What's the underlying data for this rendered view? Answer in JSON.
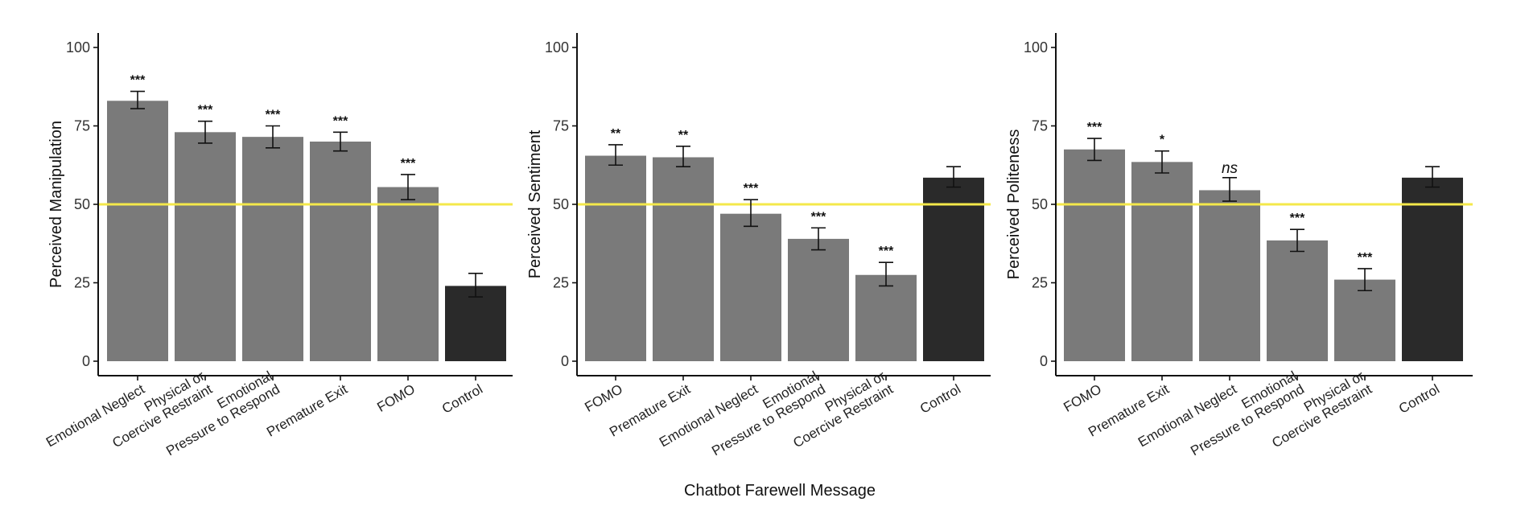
{
  "colors": {
    "bar": "#7a7a7a",
    "control_bar": "#2a2a2a",
    "reference_line": "#f4e84a",
    "axis": "#111111",
    "error_bar": "#111111"
  },
  "x_axis_title": "Chatbot Farewell Message",
  "chart_data": [
    {
      "type": "bar",
      "ylabel": "Perceived Manipulation",
      "ylim": [
        0,
        100
      ],
      "yticks": [
        "0",
        "25",
        "50",
        "75",
        "100"
      ],
      "reference_line": 50,
      "grid": false,
      "categories": [
        [
          "Emotional Neglect"
        ],
        [
          "Physical or",
          "Coercive Restraint"
        ],
        [
          "Emotional",
          "Pressure to Respond"
        ],
        [
          "Premature Exit"
        ],
        [
          "FOMO"
        ],
        [
          "Control"
        ]
      ],
      "values": [
        83,
        73,
        71.5,
        70,
        55.5,
        24
      ],
      "error_low": [
        80.5,
        69.5,
        68,
        67,
        51.5,
        20.5
      ],
      "error_high": [
        86,
        76.5,
        75,
        73,
        59.5,
        28
      ],
      "significance": [
        "***",
        "***",
        "***",
        "***",
        "***",
        ""
      ]
    },
    {
      "type": "bar",
      "ylabel": "Perceived Sentiment",
      "ylim": [
        0,
        100
      ],
      "yticks": [
        "0",
        "25",
        "50",
        "75",
        "100"
      ],
      "reference_line": 50,
      "grid": false,
      "categories": [
        [
          "FOMO"
        ],
        [
          "Premature Exit"
        ],
        [
          "Emotional Neglect"
        ],
        [
          "Emotional",
          "Pressure to Respond"
        ],
        [
          "Physical or",
          "Coercive Restraint"
        ],
        [
          "Control"
        ]
      ],
      "values": [
        65.5,
        65,
        47,
        39,
        27.5,
        58.5
      ],
      "error_low": [
        62.5,
        62,
        43,
        35.5,
        24,
        55.5
      ],
      "error_high": [
        69,
        68.5,
        51.5,
        42.5,
        31.5,
        62
      ],
      "significance": [
        "**",
        "**",
        "***",
        "***",
        "***",
        ""
      ]
    },
    {
      "type": "bar",
      "ylabel": "Perceived Politeness",
      "ylim": [
        0,
        100
      ],
      "yticks": [
        "0",
        "25",
        "50",
        "75",
        "100"
      ],
      "reference_line": 50,
      "grid": false,
      "categories": [
        [
          "FOMO"
        ],
        [
          "Premature Exit"
        ],
        [
          "Emotional Neglect"
        ],
        [
          "Emotional",
          "Pressure to Respond"
        ],
        [
          "Physical or",
          "Coercive Restraint"
        ],
        [
          "Control"
        ]
      ],
      "values": [
        67.5,
        63.5,
        54.5,
        38.5,
        26,
        58.5
      ],
      "error_low": [
        64,
        60,
        51,
        35,
        22.5,
        55.5
      ],
      "error_high": [
        71,
        67,
        58.5,
        42,
        29.5,
        62
      ],
      "significance": [
        "***",
        "*",
        "ns",
        "***",
        "***",
        ""
      ]
    }
  ]
}
